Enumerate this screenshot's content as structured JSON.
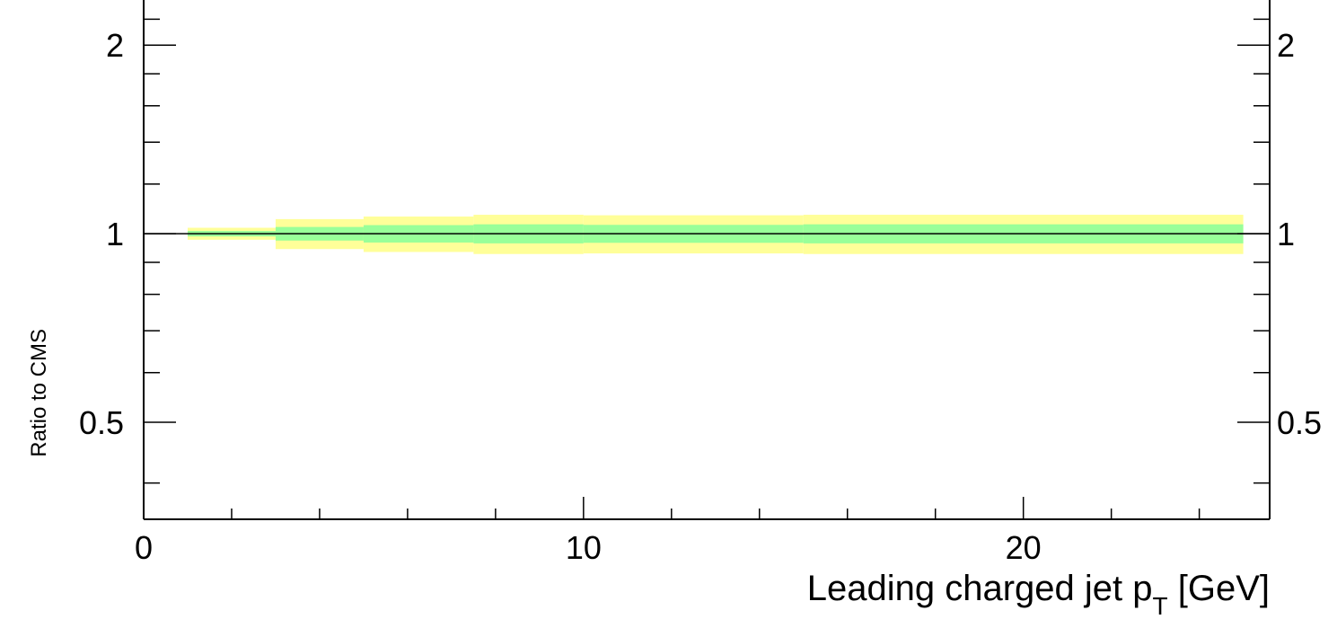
{
  "chart_data": {
    "type": "area",
    "title": "",
    "xlabel": "Leading charged jet p",
    "xlabel_subscript": "T",
    "xlabel_unit": " [GeV]",
    "ylabel": "Ratio to CMS",
    "xlim": [
      0,
      25.6
    ],
    "ylim": [
      0.35,
      2.4
    ],
    "y_scale": "log",
    "x_major_ticks": [
      0,
      10,
      20
    ],
    "x_tick_labels": [
      "0",
      "10",
      "20"
    ],
    "y_major_ticks": [
      0.5,
      1,
      2
    ],
    "y_tick_labels": [
      "0.5",
      "1",
      "2"
    ],
    "reference_line": 1,
    "colors": {
      "outer_band": "#ffff99",
      "inner_band": "#99ff99",
      "axis": "#000000"
    },
    "series": [
      {
        "name": "",
        "kind": "outer_band",
        "bins": [
          {
            "x0": 1.0,
            "x1": 3.0,
            "low": 0.978,
            "high": 1.022
          },
          {
            "x0": 3.0,
            "x1": 5.0,
            "low": 0.945,
            "high": 1.055
          },
          {
            "x0": 5.0,
            "x1": 7.5,
            "low": 0.935,
            "high": 1.065
          },
          {
            "x0": 7.5,
            "x1": 10.0,
            "low": 0.928,
            "high": 1.072
          },
          {
            "x0": 10.0,
            "x1": 15.0,
            "low": 0.93,
            "high": 1.07
          },
          {
            "x0": 15.0,
            "x1": 25.0,
            "low": 0.928,
            "high": 1.072
          }
        ]
      },
      {
        "name": "",
        "kind": "inner_band",
        "bins": [
          {
            "x0": 1.0,
            "x1": 3.0,
            "low": 0.99,
            "high": 1.01
          },
          {
            "x0": 3.0,
            "x1": 5.0,
            "low": 0.975,
            "high": 1.025
          },
          {
            "x0": 5.0,
            "x1": 7.5,
            "low": 0.968,
            "high": 1.032
          },
          {
            "x0": 7.5,
            "x1": 10.0,
            "low": 0.965,
            "high": 1.035
          },
          {
            "x0": 10.0,
            "x1": 15.0,
            "low": 0.967,
            "high": 1.033
          },
          {
            "x0": 15.0,
            "x1": 25.0,
            "low": 0.965,
            "high": 1.035
          }
        ]
      }
    ]
  }
}
